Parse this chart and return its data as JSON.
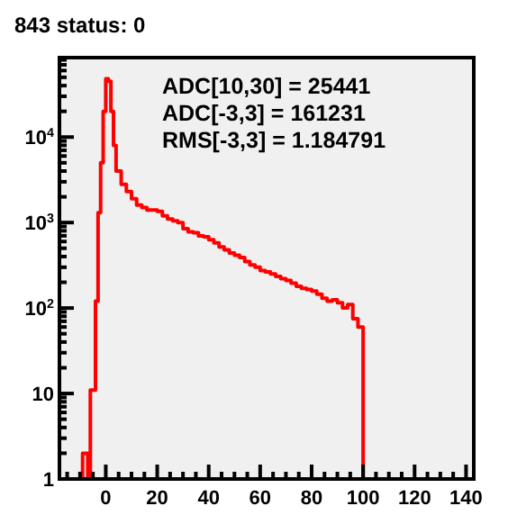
{
  "chart_data": {
    "type": "histogram",
    "title": "843 status: 0",
    "color": "#ff0000",
    "log": "y",
    "annotations": [
      "ADC[10,30] = 25441",
      "ADC[-3,3] = 161231",
      "RMS[-3,3] = 1.184791"
    ],
    "bins": [
      -9,
      -7,
      -6,
      -4,
      -3,
      -2,
      -1,
      0,
      1,
      2,
      3,
      4,
      6,
      8,
      10,
      12,
      14,
      16,
      18,
      20,
      22,
      24,
      26,
      28,
      30,
      32,
      34,
      36,
      38,
      40,
      42,
      44,
      46,
      48,
      50,
      52,
      54,
      56,
      58,
      60,
      62,
      64,
      66,
      68,
      70,
      72,
      74,
      76,
      78,
      80,
      82,
      84,
      86,
      88,
      90,
      92,
      94,
      96,
      98,
      100
    ],
    "values": [
      2,
      1,
      11,
      120,
      1300,
      5000,
      20000,
      48000,
      45000,
      20000,
      8000,
      4000,
      2800,
      2300,
      1900,
      1600,
      1500,
      1400,
      1400,
      1350,
      1200,
      1100,
      1050,
      1000,
      850,
      780,
      760,
      700,
      680,
      630,
      580,
      520,
      480,
      440,
      415,
      390,
      350,
      320,
      300,
      275,
      265,
      250,
      235,
      220,
      210,
      195,
      180,
      170,
      165,
      158,
      145,
      130,
      120,
      125,
      115,
      100,
      110,
      75,
      60
    ],
    "xlim": [
      -18,
      143
    ],
    "ylim": [
      1,
      85000
    ],
    "xticks": [
      0,
      20,
      40,
      60,
      80,
      100,
      120,
      140,
      {
        "value": -15,
        "label": null
      },
      {
        "value": -10,
        "label": null
      },
      {
        "value": -5,
        "label": null
      },
      {
        "value": 5,
        "label": null
      },
      {
        "value": 10,
        "label": null
      },
      {
        "value": 15,
        "label": null
      },
      {
        "value": 25,
        "label": null
      },
      {
        "value": 30,
        "label": null
      },
      {
        "value": 35,
        "label": null
      },
      {
        "value": 45,
        "label": null
      },
      {
        "value": 50,
        "label": null
      },
      {
        "value": 55,
        "label": null
      },
      {
        "value": 65,
        "label": null
      },
      {
        "value": 70,
        "label": null
      },
      {
        "value": 75,
        "label": null
      },
      {
        "value": 85,
        "label": null
      },
      {
        "value": 90,
        "label": null
      },
      {
        "value": 95,
        "label": null
      },
      {
        "value": 105,
        "label": null
      },
      {
        "value": 110,
        "label": null
      },
      {
        "value": 115,
        "label": null
      },
      {
        "value": 125,
        "label": null
      },
      {
        "value": 130,
        "label": null
      },
      {
        "value": 135,
        "label": null
      }
    ],
    "yticks": [
      1,
      10,
      {
        "value": 100,
        "label": "10$^{2}$"
      },
      {
        "value": 1000,
        "label": "10$^{3}$"
      },
      {
        "value": 10000,
        "label": "10$^{4}$"
      },
      {
        "value": 2,
        "label": null
      },
      {
        "value": 3,
        "label": null
      },
      {
        "value": 4,
        "label": null
      },
      {
        "value": 5,
        "label": null
      },
      {
        "value": 6,
        "label": null
      },
      {
        "value": 7,
        "label": null
      },
      {
        "value": 8,
        "label": null
      },
      {
        "value": 9,
        "label": null
      },
      {
        "value": 20,
        "label": null
      },
      {
        "value": 30,
        "label": null
      },
      {
        "value": 40,
        "label": null
      },
      {
        "value": 50,
        "label": null
      },
      {
        "value": 60,
        "label": null
      },
      {
        "value": 70,
        "label": null
      },
      {
        "value": 80,
        "label": null
      },
      {
        "value": 90,
        "label": null
      },
      {
        "value": 200,
        "label": null
      },
      {
        "value": 300,
        "label": null
      },
      {
        "value": 400,
        "label": null
      },
      {
        "value": 500,
        "label": null
      },
      {
        "value": 600,
        "label": null
      },
      {
        "value": 700,
        "label": null
      },
      {
        "value": 800,
        "label": null
      },
      {
        "value": 900,
        "label": null
      },
      {
        "value": 2000,
        "label": null
      },
      {
        "value": 3000,
        "label": null
      },
      {
        "value": 4000,
        "label": null
      },
      {
        "value": 5000,
        "label": null
      },
      {
        "value": 6000,
        "label": null
      },
      {
        "value": 7000,
        "label": null
      },
      {
        "value": 8000,
        "label": null
      },
      {
        "value": 9000,
        "label": null
      },
      {
        "value": 20000,
        "label": null
      },
      {
        "value": 30000,
        "label": null
      },
      {
        "value": 40000,
        "label": null
      },
      {
        "value": 50000,
        "label": null
      },
      {
        "value": 60000,
        "label": null
      },
      {
        "value": 70000,
        "label": null
      },
      {
        "value": 80000,
        "label": null
      }
    ]
  }
}
